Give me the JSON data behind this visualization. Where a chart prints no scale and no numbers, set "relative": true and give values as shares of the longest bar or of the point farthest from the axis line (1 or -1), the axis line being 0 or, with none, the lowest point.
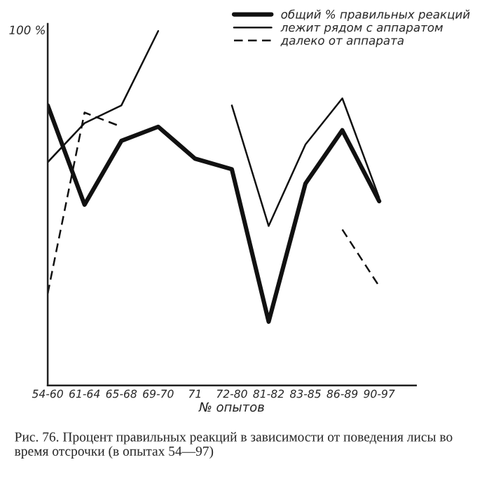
{
  "chart_data": {
    "type": "line",
    "relative": true,
    "xlabel": "№ опытов",
    "categories": [
      "54-60",
      "61-64",
      "65-68",
      "69-70",
      "71",
      "72-80",
      "81-82",
      "83-85",
      "86-89",
      "90-97"
    ],
    "series": [
      {
        "name": "общий % правильных реакций",
        "color": "#111111",
        "line_style": "solid",
        "values": [
          0.79,
          0.51,
          0.69,
          0.73,
          0.64,
          0.61,
          0.18,
          0.57,
          0.72,
          0.52
        ]
      },
      {
        "name": "лежит рядом с аппаратом",
        "color": "#111111",
        "line_style": "solid",
        "values": [
          0.63,
          0.74,
          0.79,
          1.0,
          null,
          0.79,
          0.45,
          0.68,
          0.81,
          0.53
        ]
      },
      {
        "name": "далеко от аппарата",
        "color": "#111111",
        "line_style": "dashed",
        "values": [
          0.26,
          0.77,
          0.73,
          null,
          null,
          null,
          null,
          null,
          0.44,
          0.28
        ]
      }
    ],
    "annotations": [
      "100 %",
      "Рис. 76. Процент правильных реакций в зависимости от поведения лисы во время отсрочки (в опытах 54—97)"
    ],
    "legend": "top right",
    "grid": false,
    "marker": "none"
  }
}
